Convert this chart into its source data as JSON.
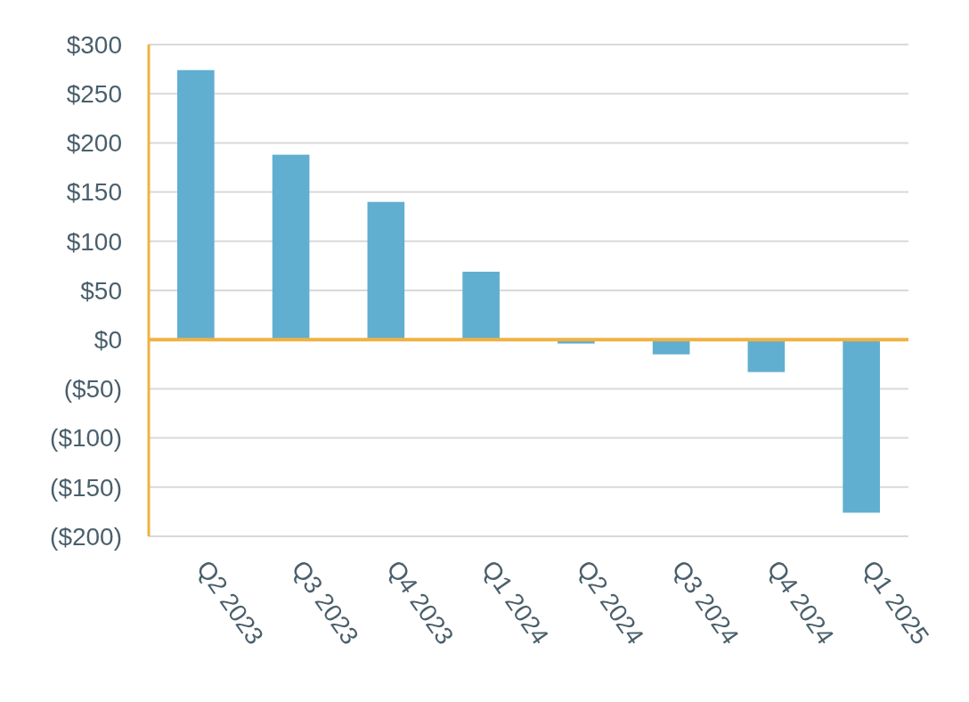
{
  "chart_data": {
    "type": "bar",
    "categories": [
      "Q2 2023",
      "Q3 2023",
      "Q4 2023",
      "Q1 2024",
      "Q2 2024",
      "Q3 2024",
      "Q4 2024",
      "Q1 2025"
    ],
    "values": [
      274,
      188,
      140,
      69,
      -4,
      -15,
      -33,
      -176
    ],
    "color": "#60aed0",
    "ylim": [
      -200,
      300
    ],
    "yticks": [
      {
        "value": -200,
        "label": "($200)"
      },
      {
        "value": -150,
        "label": "($150)"
      },
      {
        "value": -100,
        "label": "($100)"
      },
      {
        "value": -50,
        "label": "($50)"
      },
      {
        "value": 0,
        "label": "$0"
      },
      {
        "value": 50,
        "label": "$50"
      },
      {
        "value": 100,
        "label": "$100"
      },
      {
        "value": 150,
        "label": "$150"
      },
      {
        "value": 200,
        "label": "$200"
      },
      {
        "value": 250,
        "label": "$250"
      },
      {
        "value": 300,
        "label": "$300"
      }
    ],
    "grid": "y",
    "ref_lines": [
      {
        "axis": "y",
        "value": 0,
        "color": "#f0b243"
      }
    ]
  }
}
